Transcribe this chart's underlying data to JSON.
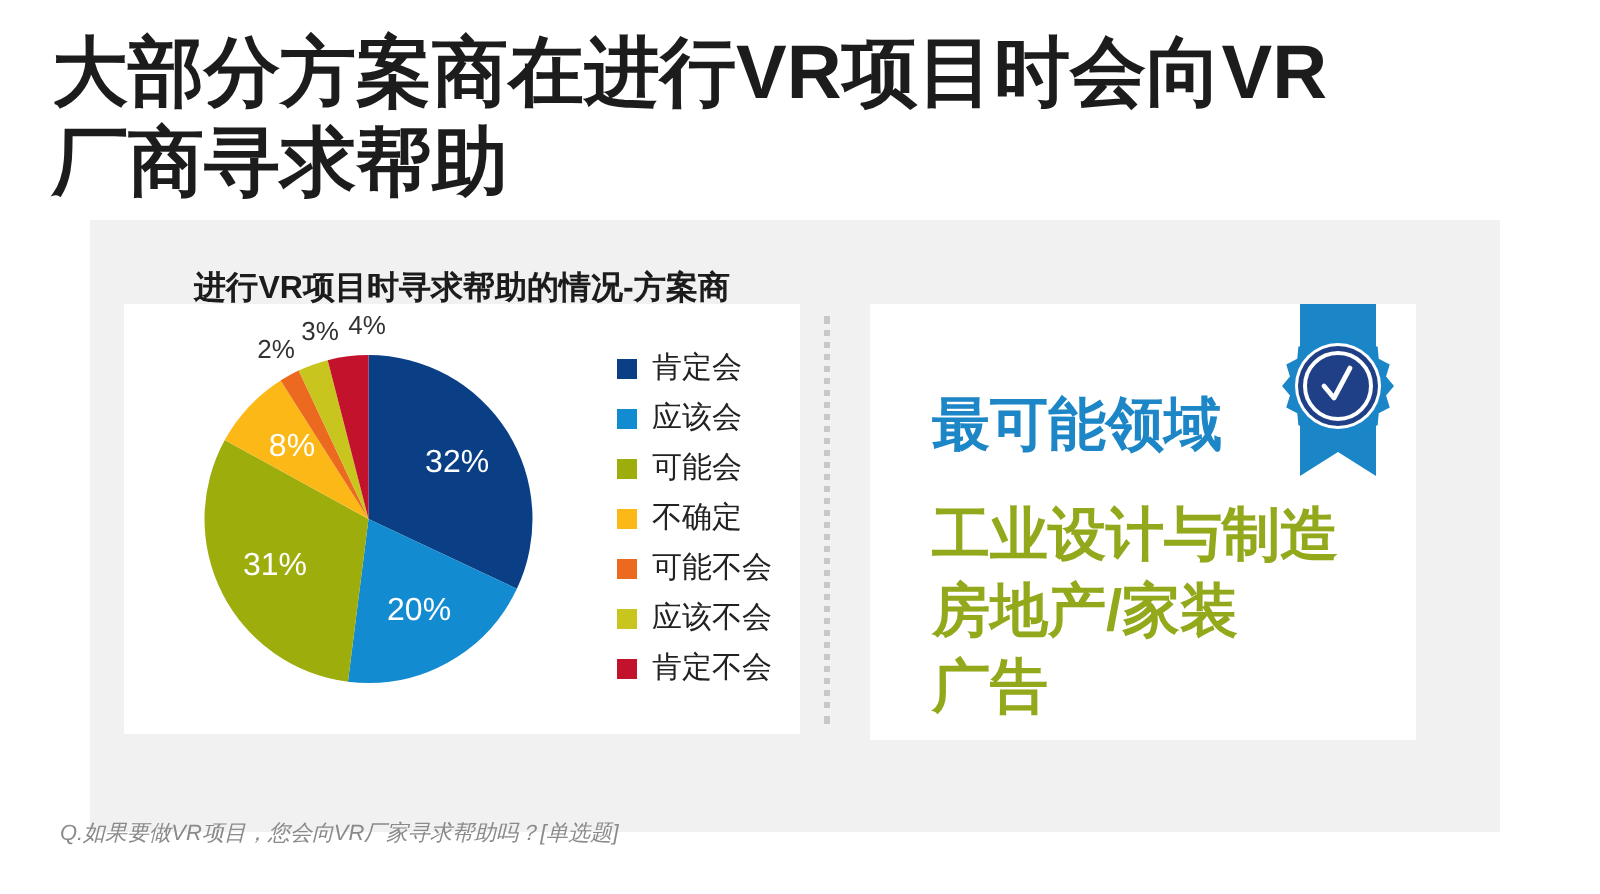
{
  "chart_data": [
    {
      "type": "pie",
      "title": "大部分方案商在进行VR项目时会向VR厂商寻求帮助",
      "subtitle": "进行VR项目时寻求帮助的情况-方案商",
      "categories": [
        "肯定会",
        "应该会",
        "可能会",
        "不确定",
        "可能不会",
        "应该不会",
        "肯定不会"
      ],
      "values": [
        32,
        20,
        31,
        8,
        2,
        3,
        4
      ],
      "colors": [
        "#0a3f86",
        "#138bd0",
        "#9cad0c",
        "#fbb817",
        "#ec6920",
        "#c9c51f",
        "#c3132c"
      ],
      "value_labels": [
        "32%",
        "20%",
        "31%",
        "8%",
        "2%",
        "3%",
        "4%"
      ],
      "legend": "right",
      "annotations": [
        "Q.如果要做VR项目，您会向VR厂家寻求帮助吗？[单选题]"
      ]
    },
    {
      "type": "other",
      "title": "最可能领域",
      "annotations": [
        "工业设计与制造",
        "房地产/家装",
        "广告"
      ]
    }
  ]
}
